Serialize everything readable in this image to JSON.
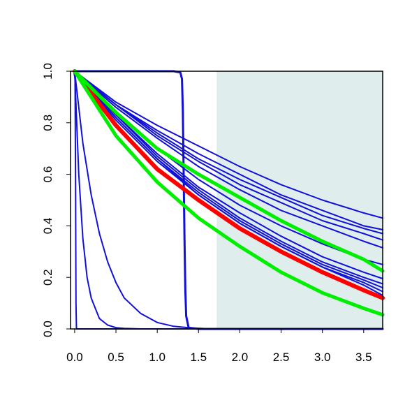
{
  "chart_data": {
    "type": "line",
    "title": "",
    "xlabel": "",
    "ylabel": "",
    "xlim": [
      -0.05,
      3.73
    ],
    "ylim": [
      0.0,
      1.0
    ],
    "xticks": [
      {
        "value": 0.0,
        "label": "0.0"
      },
      {
        "value": 0.5,
        "label": "0.5"
      },
      {
        "value": 1.0,
        "label": "1.0"
      },
      {
        "value": 1.5,
        "label": "1.5"
      },
      {
        "value": 2.0,
        "label": "2.0"
      },
      {
        "value": 2.5,
        "label": "2.5"
      },
      {
        "value": 3.0,
        "label": "3.0"
      },
      {
        "value": 3.5,
        "label": "3.5"
      }
    ],
    "yticks": [
      {
        "value": 0.0,
        "label": "0.0"
      },
      {
        "value": 0.2,
        "label": "0.2"
      },
      {
        "value": 0.4,
        "label": "0.4"
      },
      {
        "value": 0.6,
        "label": "0.6"
      },
      {
        "value": 0.8,
        "label": "0.8"
      },
      {
        "value": 1.0,
        "label": "1.0"
      }
    ],
    "grid": false,
    "legend": "none",
    "shaded_region": {
      "x_from": 1.72,
      "x_to": 3.73,
      "color": "#dfeded"
    },
    "colors": {
      "blue": "#1010d8",
      "red": "#ff0000",
      "green": "#00ee00",
      "axis": "#000000"
    },
    "series": [
      {
        "color": "#1010d8",
        "width": 2,
        "x": [
          -0.01,
          0.005,
          0.012,
          0.016,
          0.022,
          0.04,
          3.73
        ],
        "y": [
          1.0,
          0.97,
          0.5,
          0.1,
          0.0,
          0.0,
          0.0
        ]
      },
      {
        "color": "#1010d8",
        "width": 2,
        "x": [
          0.0,
          0.05,
          0.1,
          0.15,
          0.2,
          0.3,
          0.4,
          0.5,
          0.6,
          0.8,
          3.73
        ],
        "y": [
          1.0,
          0.6,
          0.35,
          0.2,
          0.12,
          0.04,
          0.015,
          0.005,
          0.002,
          0.0,
          0.0
        ]
      },
      {
        "color": "#1010d8",
        "width": 2,
        "x": [
          0.0,
          0.1,
          0.2,
          0.3,
          0.4,
          0.5,
          0.6,
          0.8,
          1.0,
          1.2,
          1.4,
          1.6,
          3.73
        ],
        "y": [
          1.0,
          0.72,
          0.52,
          0.37,
          0.26,
          0.18,
          0.12,
          0.06,
          0.025,
          0.01,
          0.004,
          0.001,
          0.0
        ]
      },
      {
        "color": "#1010d8",
        "width": 3,
        "x": [
          0.0,
          1.2,
          1.28,
          1.3,
          1.31,
          1.32,
          1.33,
          1.34,
          1.35,
          1.38,
          1.5,
          3.73
        ],
        "y": [
          1.0,
          1.0,
          0.995,
          0.97,
          0.85,
          0.6,
          0.35,
          0.15,
          0.05,
          0.005,
          0.0,
          0.0
        ]
      },
      {
        "color": "#1010d8",
        "width": 2,
        "x": [
          0.0,
          0.5,
          1.0,
          1.5,
          2.0,
          2.5,
          3.0,
          3.5,
          3.73
        ],
        "y": [
          1.0,
          0.88,
          0.79,
          0.71,
          0.63,
          0.56,
          0.5,
          0.45,
          0.43
        ]
      },
      {
        "color": "#1010d8",
        "width": 2,
        "x": [
          0.0,
          0.5,
          1.0,
          1.5,
          2.0,
          2.5,
          3.0,
          3.5,
          3.73
        ],
        "y": [
          1.0,
          0.87,
          0.77,
          0.68,
          0.6,
          0.52,
          0.46,
          0.4,
          0.385
        ]
      },
      {
        "color": "#1010d8",
        "width": 2,
        "x": [
          0.0,
          0.5,
          1.0,
          1.5,
          2.0,
          2.5,
          3.0,
          3.5,
          3.73
        ],
        "y": [
          1.0,
          0.87,
          0.76,
          0.66,
          0.58,
          0.51,
          0.44,
          0.39,
          0.37
        ]
      },
      {
        "color": "#1010d8",
        "width": 2,
        "x": [
          0.0,
          0.5,
          1.0,
          1.5,
          2.0,
          2.5,
          3.0,
          3.5,
          3.73
        ],
        "y": [
          1.0,
          0.87,
          0.75,
          0.65,
          0.56,
          0.49,
          0.42,
          0.37,
          0.345
        ]
      },
      {
        "color": "#1010d8",
        "width": 2,
        "x": [
          0.0,
          0.5,
          1.0,
          1.5,
          2.0,
          2.5,
          3.0,
          3.5,
          3.73
        ],
        "y": [
          1.0,
          0.86,
          0.74,
          0.63,
          0.54,
          0.46,
          0.4,
          0.34,
          0.315
        ]
      },
      {
        "color": "#1010d8",
        "width": 2,
        "x": [
          0.0,
          0.5,
          1.0,
          1.5,
          2.0,
          2.5,
          3.0,
          3.5,
          3.73
        ],
        "y": [
          1.0,
          0.84,
          0.7,
          0.58,
          0.48,
          0.4,
          0.33,
          0.27,
          0.25
        ]
      },
      {
        "color": "#1010d8",
        "width": 2,
        "x": [
          0.0,
          0.5,
          1.0,
          1.5,
          2.0,
          2.5,
          3.0,
          3.5,
          3.73
        ],
        "y": [
          1.0,
          0.83,
          0.68,
          0.55,
          0.45,
          0.36,
          0.28,
          0.22,
          0.195
        ]
      },
      {
        "color": "#1010d8",
        "width": 2,
        "x": [
          0.0,
          0.5,
          1.0,
          1.5,
          2.0,
          2.5,
          3.0,
          3.5,
          3.73
        ],
        "y": [
          1.0,
          0.83,
          0.67,
          0.54,
          0.43,
          0.34,
          0.26,
          0.2,
          0.175
        ]
      },
      {
        "color": "#1010d8",
        "width": 2,
        "x": [
          0.0,
          0.5,
          1.0,
          1.5,
          2.0,
          2.5,
          3.0,
          3.5,
          3.73
        ],
        "y": [
          1.0,
          0.82,
          0.66,
          0.53,
          0.42,
          0.33,
          0.25,
          0.19,
          0.16
        ]
      },
      {
        "color": "#1010d8",
        "width": 2,
        "x": [
          0.0,
          0.5,
          1.0,
          1.5,
          2.0,
          2.5,
          3.0,
          3.5,
          3.73
        ],
        "y": [
          1.0,
          0.82,
          0.66,
          0.52,
          0.41,
          0.32,
          0.24,
          0.18,
          0.145
        ]
      },
      {
        "color": "#1010d8",
        "width": 2,
        "x": [
          0.0,
          0.5,
          1.0,
          1.5,
          2.0,
          2.5,
          3.0,
          3.5,
          3.73
        ],
        "y": [
          1.0,
          0.81,
          0.65,
          0.52,
          0.41,
          0.32,
          0.24,
          0.17,
          0.13
        ]
      },
      {
        "color": "#ff0000",
        "width": 6,
        "x": [
          0.0,
          0.5,
          1.0,
          1.5,
          2.0,
          2.5,
          3.0,
          3.5,
          3.73
        ],
        "y": [
          1.0,
          0.79,
          0.62,
          0.5,
          0.39,
          0.3,
          0.22,
          0.15,
          0.12
        ]
      },
      {
        "color": "#00ee00",
        "width": 5,
        "x": [
          0.0,
          0.5,
          1.0,
          1.5,
          2.0,
          2.5,
          3.0,
          3.5,
          3.73
        ],
        "y": [
          1.0,
          0.84,
          0.7,
          0.6,
          0.51,
          0.42,
          0.34,
          0.27,
          0.225
        ]
      },
      {
        "color": "#00ee00",
        "width": 5,
        "x": [
          0.0,
          0.5,
          1.0,
          1.5,
          2.0,
          2.5,
          3.0,
          3.5,
          3.73
        ],
        "y": [
          1.0,
          0.75,
          0.57,
          0.43,
          0.32,
          0.22,
          0.14,
          0.08,
          0.055
        ]
      }
    ]
  }
}
